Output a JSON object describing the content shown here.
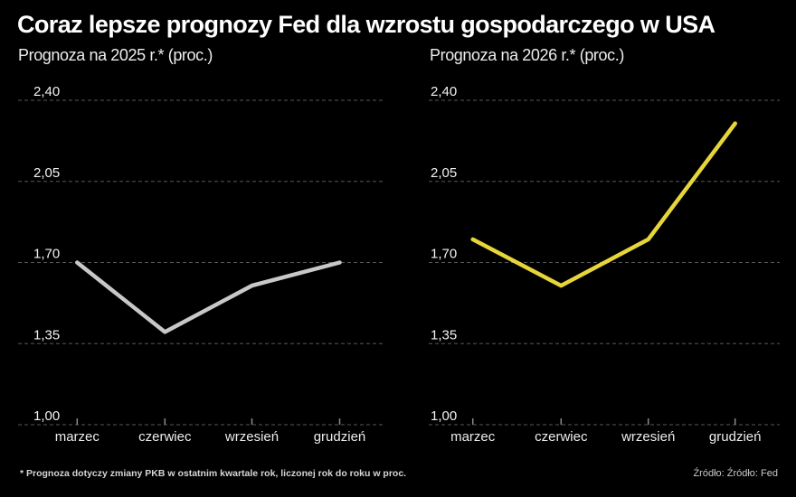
{
  "title": "Coraz lepsze prognozy Fed dla wzrostu gospodarczego w USA",
  "footnote": "* Prognoza dotyczy zmiany PKB w ostatnim kwartale rok, liczonej rok do roku w proc.",
  "source": "Źródło: Źródło: Fed",
  "colors": {
    "background": "#000000",
    "title_text": "#ffffff",
    "subtitle_text": "#ededed",
    "grid": "#575757",
    "axis_tick": "#8a8a8a",
    "series_2025": "#c8c8c8",
    "series_2026": "#e6d63a"
  },
  "chart_data": [
    {
      "type": "line",
      "title": "Prognoza na 2025 r.* (proc.)",
      "categories": [
        "marzec",
        "czerwiec",
        "wrzesień",
        "grudzień"
      ],
      "values": [
        1.7,
        1.4,
        1.6,
        1.7
      ],
      "y_ticks": [
        2.4,
        2.05,
        1.7,
        1.35,
        1.0
      ],
      "y_tick_labels": [
        "2,40",
        "2,05",
        "1,70",
        "1,35",
        "1,00"
      ],
      "ylim": [
        1.0,
        2.4
      ],
      "xlabel": "",
      "ylabel": "",
      "line_color": "#c8c8c8",
      "grid": "horizontal dashed",
      "legend": "none"
    },
    {
      "type": "line",
      "title": "Prognoza na 2026 r.* (proc.)",
      "categories": [
        "marzec",
        "czerwiec",
        "wrzesień",
        "grudzień"
      ],
      "values": [
        1.8,
        1.6,
        1.8,
        2.3
      ],
      "y_ticks": [
        2.4,
        2.05,
        1.7,
        1.35,
        1.0
      ],
      "y_tick_labels": [
        "2,40",
        "2,05",
        "1,70",
        "1,35",
        "1,00"
      ],
      "ylim": [
        1.0,
        2.4
      ],
      "xlabel": "",
      "ylabel": "",
      "line_color": "#e6d63a",
      "grid": "horizontal dashed",
      "legend": "none"
    }
  ]
}
